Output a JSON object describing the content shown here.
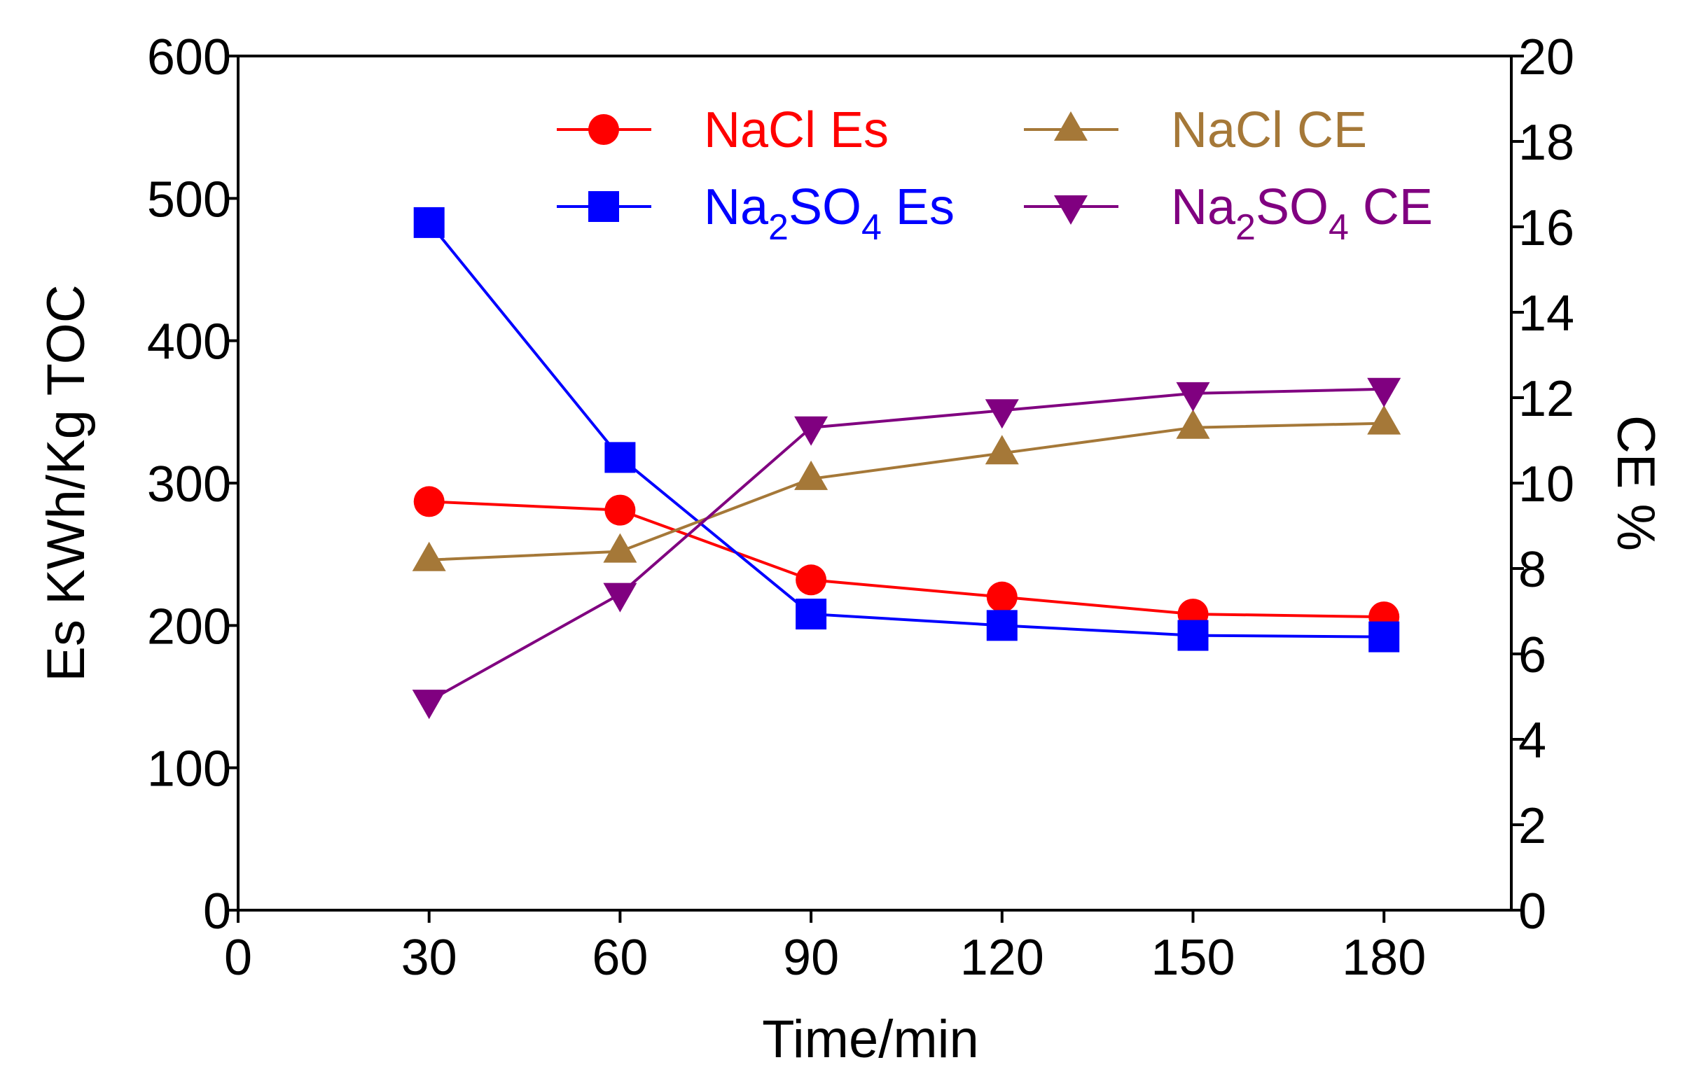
{
  "chart_data": {
    "type": "line",
    "title": "",
    "xlabel": "Time/min",
    "ylabel": "Es KWh/Kg TOC",
    "y2label": "CE %",
    "xlim": [
      0,
      200
    ],
    "ylim": [
      0,
      600
    ],
    "y2lim": [
      0,
      20
    ],
    "xticks": [
      "0",
      "30",
      "60",
      "90",
      "120",
      "150",
      "180"
    ],
    "yticks": [
      "0",
      "100",
      "200",
      "300",
      "400",
      "500",
      "600"
    ],
    "y2ticks": [
      "0",
      "2",
      "4",
      "6",
      "8",
      "10",
      "12",
      "14",
      "16",
      "18",
      "20"
    ],
    "x": [
      30,
      60,
      90,
      120,
      150,
      180
    ],
    "series": [
      {
        "name": "NaCl Es",
        "label_main": "NaCl Es",
        "label_sub": "",
        "label_tail": "",
        "axis": "left",
        "color": "#ff0000",
        "marker": "circle",
        "values": [
          287,
          281,
          232,
          220,
          208,
          206
        ]
      },
      {
        "name": "Na2SO4 Es",
        "label_main": "Na",
        "label_sub": "2",
        "label_tail": "SO",
        "label_sub2": "4",
        "label_end": " Es",
        "axis": "left",
        "color": "#0000ff",
        "marker": "square",
        "values": [
          483,
          318,
          208,
          200,
          193,
          192
        ]
      },
      {
        "name": "NaCl CE",
        "label_main": "NaCl CE",
        "label_sub": "",
        "label_tail": "",
        "axis": "right",
        "color": "#a57838",
        "marker": "triangle-up",
        "values": [
          8.2,
          8.4,
          10.1,
          10.7,
          11.3,
          11.4
        ]
      },
      {
        "name": "Na2SO4 CE",
        "label_main": "Na",
        "label_sub": "2",
        "label_tail": "SO",
        "label_sub2": "4",
        "label_end": " CE",
        "axis": "right",
        "color": "#800080",
        "marker": "triangle-down",
        "values": [
          4.9,
          7.4,
          11.3,
          11.7,
          12.1,
          12.2
        ]
      }
    ],
    "legend": "top-right",
    "grid": false
  }
}
